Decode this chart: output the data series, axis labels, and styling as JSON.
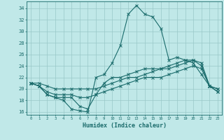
{
  "xlabel": "Humidex (Indice chaleur)",
  "xlim": [
    -0.5,
    23.5
  ],
  "ylim": [
    15.5,
    35.2
  ],
  "yticks": [
    16,
    18,
    20,
    22,
    24,
    26,
    28,
    30,
    32,
    34
  ],
  "xticks": [
    0,
    1,
    2,
    3,
    4,
    5,
    6,
    7,
    8,
    9,
    10,
    11,
    12,
    13,
    14,
    15,
    16,
    17,
    18,
    19,
    20,
    21,
    22,
    23
  ],
  "bg_color": "#c0e8e8",
  "line_color": "#1a6b6b",
  "grid_color": "#98c8c8",
  "line1_x": [
    0,
    1,
    2,
    3,
    4,
    5,
    6,
    7,
    8,
    9,
    10,
    11,
    12,
    13,
    14,
    15,
    16,
    17,
    18,
    19,
    20,
    21,
    22,
    23
  ],
  "line1_y": [
    21.0,
    20.5,
    19.0,
    18.5,
    18.0,
    16.5,
    16.2,
    16.0,
    22.0,
    22.5,
    24.5,
    27.5,
    33.0,
    34.5,
    33.0,
    32.5,
    30.5,
    25.0,
    25.5,
    25.0,
    24.5,
    22.5,
    20.5,
    19.5
  ],
  "line2_x": [
    0,
    1,
    2,
    3,
    4,
    5,
    6,
    7,
    8,
    9,
    10,
    11,
    12,
    13,
    14,
    15,
    16,
    17,
    18,
    19,
    20,
    21,
    22,
    23
  ],
  "line2_y": [
    21.0,
    20.5,
    19.0,
    18.5,
    18.5,
    18.5,
    17.0,
    16.5,
    19.0,
    21.0,
    22.0,
    22.0,
    22.5,
    23.0,
    23.5,
    23.5,
    23.5,
    23.5,
    24.0,
    24.5,
    25.0,
    24.5,
    20.5,
    19.5
  ],
  "line3_x": [
    0,
    1,
    2,
    3,
    4,
    5,
    6,
    7,
    8,
    9,
    10,
    11,
    12,
    13,
    14,
    15,
    16,
    17,
    18,
    19,
    20,
    21,
    22,
    23
  ],
  "line3_y": [
    21.0,
    20.5,
    19.5,
    19.0,
    19.0,
    19.0,
    18.5,
    18.5,
    19.0,
    19.5,
    20.0,
    20.5,
    21.0,
    21.5,
    22.0,
    22.0,
    22.0,
    22.5,
    23.0,
    23.5,
    24.0,
    23.5,
    20.5,
    20.0
  ],
  "line4_x": [
    0,
    1,
    2,
    3,
    4,
    5,
    6,
    7,
    8,
    9,
    10,
    11,
    12,
    13,
    14,
    15,
    16,
    17,
    18,
    19,
    20,
    21,
    22,
    23
  ],
  "line4_y": [
    21.0,
    21.0,
    20.5,
    20.0,
    20.0,
    20.0,
    20.0,
    20.0,
    20.0,
    20.5,
    21.0,
    21.5,
    22.0,
    22.0,
    22.5,
    23.0,
    23.5,
    24.0,
    24.5,
    25.0,
    25.0,
    24.0,
    20.5,
    20.0
  ]
}
